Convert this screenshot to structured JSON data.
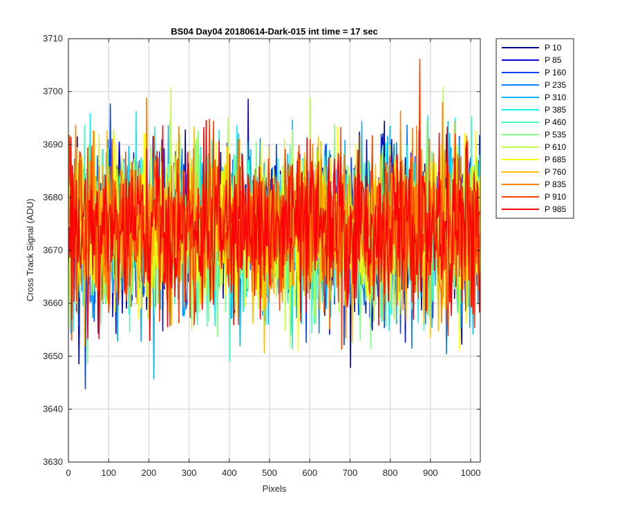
{
  "chart_data": {
    "type": "line",
    "title": "BS04 Day04 20180614-Dark-015 int time = 17 sec",
    "xlabel": "Pixels",
    "ylabel": "Cross Track Signal (ADU)",
    "xlim": [
      0,
      1024
    ],
    "ylim": [
      3630,
      3710
    ],
    "xticks": [
      0,
      100,
      200,
      300,
      400,
      500,
      600,
      700,
      800,
      900,
      1000
    ],
    "yticks": [
      3630,
      3640,
      3650,
      3660,
      3670,
      3680,
      3690,
      3700,
      3710
    ],
    "grid": true,
    "legend_position": "outside-top-right",
    "noise_model": {
      "mean": 3674,
      "sigma": 7.5,
      "points_per_series": 512
    },
    "series": [
      {
        "name": "P 10",
        "color": "#00008F"
      },
      {
        "name": "P 85",
        "color": "#0000D8"
      },
      {
        "name": "P 160",
        "color": "#0040FF"
      },
      {
        "name": "P 235",
        "color": "#0080FF"
      },
      {
        "name": "P 310",
        "color": "#00B4FF"
      },
      {
        "name": "P 385",
        "color": "#10F0F0"
      },
      {
        "name": "P 460",
        "color": "#40FFBF"
      },
      {
        "name": "P 535",
        "color": "#80FF80"
      },
      {
        "name": "P 610",
        "color": "#BFFF40"
      },
      {
        "name": "P 685",
        "color": "#FFFF00"
      },
      {
        "name": "P 760",
        "color": "#FFBF00"
      },
      {
        "name": "P 835",
        "color": "#FF8000"
      },
      {
        "name": "P 910",
        "color": "#FF4000"
      },
      {
        "name": "P 985",
        "color": "#FF0000"
      }
    ]
  }
}
